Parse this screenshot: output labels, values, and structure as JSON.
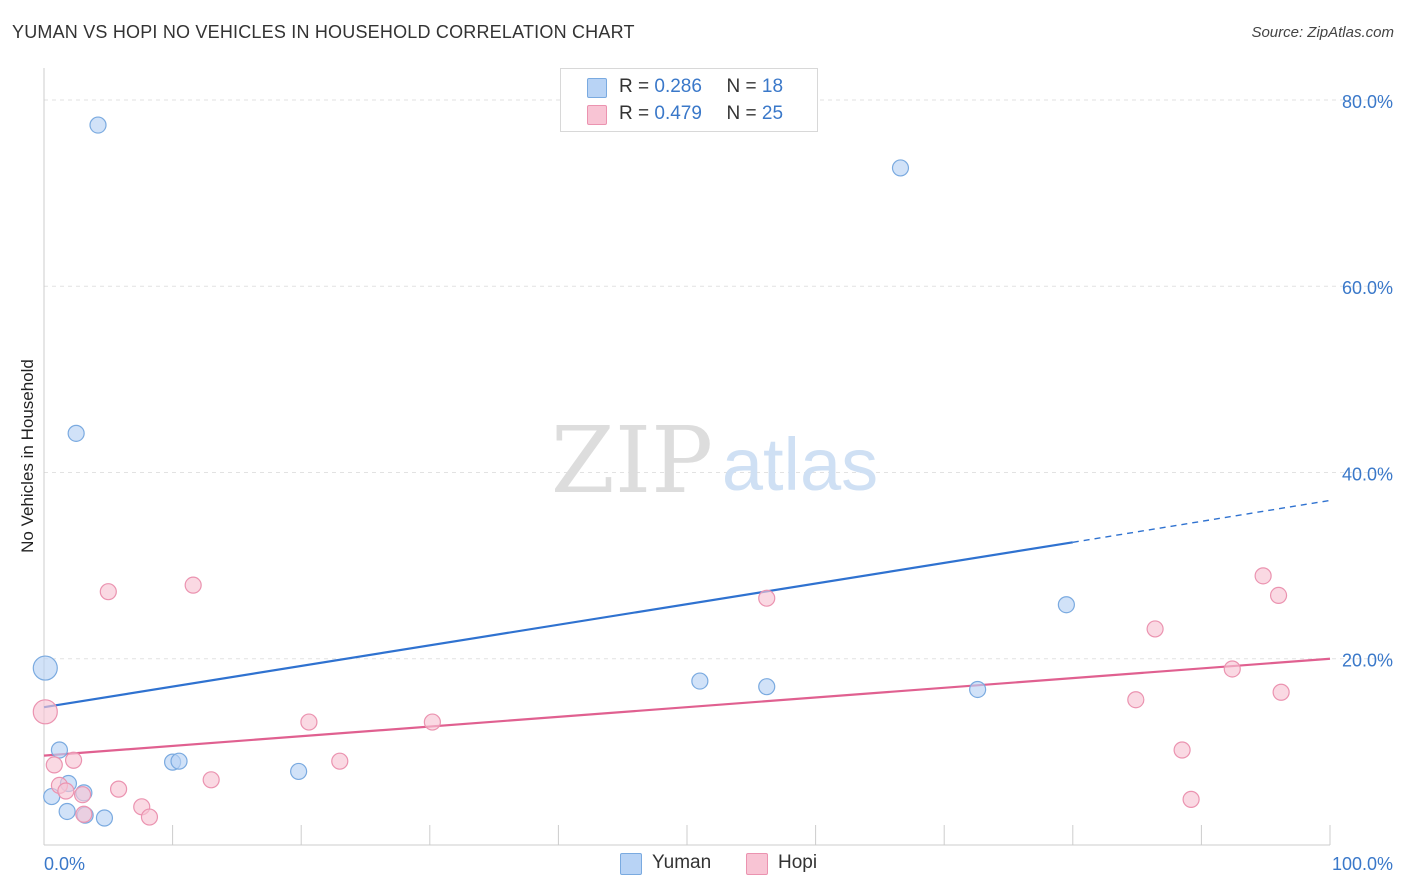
{
  "title": "YUMAN VS HOPI NO VEHICLES IN HOUSEHOLD CORRELATION CHART",
  "source": "Source: ZipAtlas.com",
  "watermark": {
    "zip": "ZIP",
    "atlas": "atlas"
  },
  "legend": {
    "rows": [
      {
        "r_label": "R =",
        "r_value": "0.286",
        "n_label": "N =",
        "n_value": "18"
      },
      {
        "r_label": "R =",
        "r_value": "0.479",
        "n_label": "N =",
        "n_value": "25"
      }
    ]
  },
  "bottom_legend": [
    "Yuman",
    "Hopi"
  ],
  "colors": {
    "yuman_fill": "#b8d3f5",
    "yuman_stroke": "#7aaae0",
    "yuman_line": "#2f72d0",
    "hopi_fill": "#f8c4d4",
    "hopi_stroke": "#eb93b0",
    "hopi_line": "#e06090",
    "tick_label": "#3a78c9",
    "grid": "#e2e2e2"
  },
  "chart_data": {
    "type": "scatter",
    "title": "YUMAN VS HOPI NO VEHICLES IN HOUSEHOLD CORRELATION CHART",
    "xlabel": "",
    "ylabel": "No Vehicles in Household",
    "xlim": [
      0,
      100
    ],
    "ylim": [
      0,
      83
    ],
    "x_tick_labels": [
      {
        "value": 0,
        "label": "0.0%"
      },
      {
        "value": 100,
        "label": "100.0%"
      }
    ],
    "y_tick_labels": [
      {
        "value": 20,
        "label": "20.0%"
      },
      {
        "value": 40,
        "label": "40.0%"
      },
      {
        "value": 60,
        "label": "60.0%"
      },
      {
        "value": 80,
        "label": "80.0%"
      }
    ],
    "x_minor_ticks": [
      0,
      10,
      20,
      30,
      40,
      50,
      60,
      70,
      80,
      90,
      100
    ],
    "series": [
      {
        "name": "Yuman",
        "r": 0.286,
        "n": 18,
        "points": [
          {
            "x": 0.1,
            "y": 19.0,
            "big": true
          },
          {
            "x": 4.2,
            "y": 77.3
          },
          {
            "x": 2.5,
            "y": 44.2
          },
          {
            "x": 1.2,
            "y": 10.2
          },
          {
            "x": 1.9,
            "y": 6.6
          },
          {
            "x": 0.6,
            "y": 5.2
          },
          {
            "x": 1.8,
            "y": 3.6
          },
          {
            "x": 3.1,
            "y": 5.6
          },
          {
            "x": 3.2,
            "y": 3.2
          },
          {
            "x": 4.7,
            "y": 2.9
          },
          {
            "x": 10.0,
            "y": 8.9
          },
          {
            "x": 10.5,
            "y": 9.0
          },
          {
            "x": 19.8,
            "y": 7.9
          },
          {
            "x": 66.6,
            "y": 72.7
          },
          {
            "x": 51.0,
            "y": 17.6
          },
          {
            "x": 56.2,
            "y": 17.0
          },
          {
            "x": 72.6,
            "y": 16.7
          },
          {
            "x": 79.5,
            "y": 25.8
          }
        ],
        "trend": {
          "x0": 0,
          "y0": 14.8,
          "x1": 80,
          "y1": 32.5,
          "dash_to_x": 100,
          "dash_to_y": 37.0
        }
      },
      {
        "name": "Hopi",
        "r": 0.479,
        "n": 25,
        "points": [
          {
            "x": 0.1,
            "y": 14.3,
            "big": true
          },
          {
            "x": 0.8,
            "y": 8.6
          },
          {
            "x": 1.2,
            "y": 6.4
          },
          {
            "x": 1.7,
            "y": 5.8
          },
          {
            "x": 2.3,
            "y": 9.1
          },
          {
            "x": 3.0,
            "y": 5.4
          },
          {
            "x": 3.1,
            "y": 3.3
          },
          {
            "x": 5.0,
            "y": 27.2
          },
          {
            "x": 5.8,
            "y": 6.0
          },
          {
            "x": 7.6,
            "y": 4.1
          },
          {
            "x": 8.2,
            "y": 3.0
          },
          {
            "x": 11.6,
            "y": 27.9
          },
          {
            "x": 13.0,
            "y": 7.0
          },
          {
            "x": 20.6,
            "y": 13.2
          },
          {
            "x": 23.0,
            "y": 9.0
          },
          {
            "x": 30.2,
            "y": 13.2
          },
          {
            "x": 56.2,
            "y": 26.5
          },
          {
            "x": 84.9,
            "y": 15.6
          },
          {
            "x": 86.4,
            "y": 23.2
          },
          {
            "x": 88.5,
            "y": 10.2
          },
          {
            "x": 89.2,
            "y": 4.9
          },
          {
            "x": 92.4,
            "y": 18.9
          },
          {
            "x": 94.8,
            "y": 28.9
          },
          {
            "x": 96.0,
            "y": 26.8
          },
          {
            "x": 96.2,
            "y": 16.4
          }
        ],
        "trend": {
          "x0": 0,
          "y0": 9.6,
          "x1": 100,
          "y1": 20.0
        }
      }
    ]
  }
}
